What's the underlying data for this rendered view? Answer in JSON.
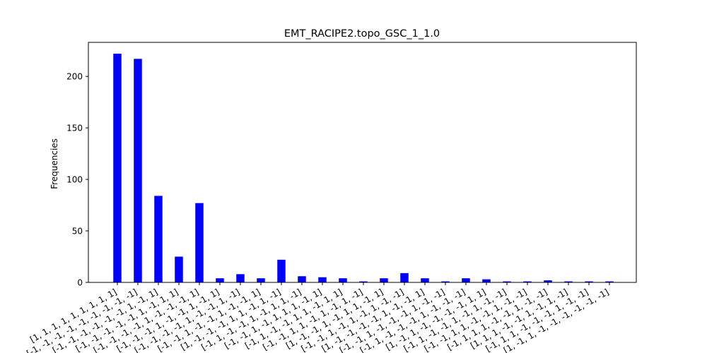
{
  "chart_data": {
    "type": "bar",
    "title": "EMT_RACIPE2.topo_GSC_1_1.0",
    "xlabel": "",
    "ylabel": "Frequencies",
    "ylim": [
      0,
      233
    ],
    "yticks": [
      0,
      50,
      100,
      150,
      200
    ],
    "grid": false,
    "bar_color": "#0000ff",
    "categories": [
      "[1, 1, 1, 1, 1, 1, 1, 1, 1]",
      "[-1, -1, -1, -1, -1, -1, -1, -1, -1]",
      "[-1, -1, -1, -1, -1, -1, 1, -1, 1]",
      "[-1, -1, -1, -1, -1, 1, -1, 1, 1]",
      "[-1, -1, -1, -1, 1, -1, -1, -1, 1]",
      "[-1, -1, -1, 1, -1, -1, 1, -1, 1]",
      "[-1, -1, -1, -1, 1, -1, -1, 1, -1]",
      "[-1, -1, 1, -1, -1, 1, -1, -1, 1]",
      "[1, -1, -1, -1, 1, 1, -1, 1, -1]",
      "[-1, 1, -1, -1, 1, -1, 1, 1, -1]",
      "[-1, -1, 1, -1, 1, 1, 1, -1, 1]",
      "[-1, 1, -1, -1, 1, 1, -1, 1, 1]",
      "[-1, -1, 1, 1, -1, 1, -1, 1, -1]",
      "[1, -1, -1, 1, -1, 1, 1, -1, 1]",
      "[-1, -1, 1, -1, 1, -1, 1, -1, -1]",
      "[1, -1, -1, -1, -1, 1, -1, -1, 1]",
      "[-1, -1, 1, -1, -1, -1, 1, -1, -1]",
      "[-1, 1, -1, -1, -1, 1, -1, -1, -1]",
      "[1, -1, 1, -1, -1, -1, -1, 1, 1]",
      "[-1, 1, -1, -1, 1, -1, 1, -1, -1]",
      "[-1, -1, 1, 1, -1, -1, 1, -1, -1]",
      "[-1, 1, 1, 1, -1, -1, 1, -1, -1]",
      "[1, 1, 1, -1, -1, 1, -1, 1, -1]",
      "[-1, 1, 1, -1, -1, -1, 1, -1, -1]",
      "[1, -1, 1, -1, -1, -1, -1, -1, -1]"
    ],
    "values": [
      222,
      217,
      84,
      25,
      77,
      4,
      8,
      4,
      22,
      6,
      5,
      4,
      1,
      4,
      9,
      4,
      1,
      4,
      3,
      1,
      1,
      2,
      1,
      1,
      1
    ]
  }
}
